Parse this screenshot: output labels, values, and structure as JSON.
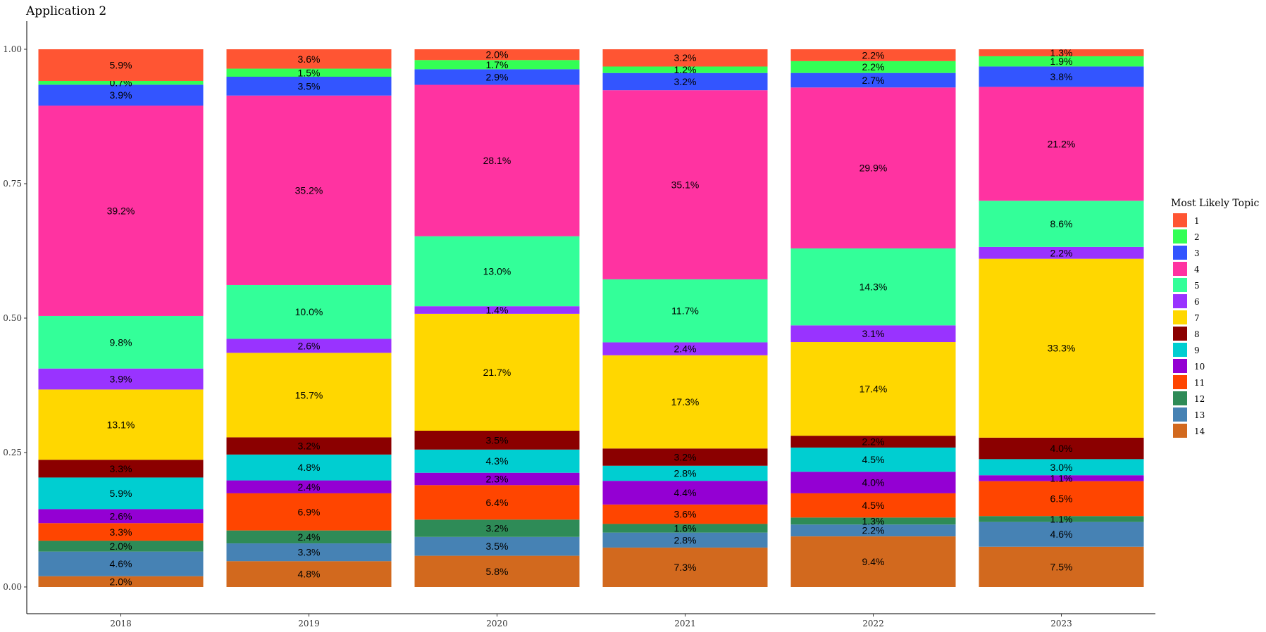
{
  "chart_data": {
    "type": "bar",
    "stacked": true,
    "title": "Application 2",
    "xlabel": "",
    "ylabel": "",
    "ylim": [
      0,
      1
    ],
    "yticks": [
      "0.00",
      "0.25",
      "0.50",
      "0.75",
      "1.00"
    ],
    "categories": [
      "2018",
      "2019",
      "2020",
      "2021",
      "2022",
      "2023"
    ],
    "legend": {
      "title": "Most Likely Topic",
      "position": "right"
    },
    "series": [
      {
        "name": "1",
        "color": "#FF5533",
        "values": [
          0.059,
          0.036,
          0.02,
          0.032,
          0.022,
          0.013
        ],
        "labels": [
          "5.9%",
          "3.6%",
          "2.0%",
          "3.2%",
          "2.2%",
          "1.3%"
        ]
      },
      {
        "name": "2",
        "color": "#33FF55",
        "values": [
          0.007,
          0.015,
          0.017,
          0.012,
          0.022,
          0.019
        ],
        "labels": [
          "0.7%",
          "1.5%",
          "1.7%",
          "1.2%",
          "2.2%",
          "1.9%"
        ]
      },
      {
        "name": "3",
        "color": "#3355FF",
        "values": [
          0.039,
          0.035,
          0.029,
          0.032,
          0.027,
          0.038
        ],
        "labels": [
          "3.9%",
          "3.5%",
          "2.9%",
          "3.2%",
          "2.7%",
          "3.8%"
        ]
      },
      {
        "name": "4",
        "color": "#FF33A1",
        "values": [
          0.392,
          0.352,
          0.281,
          0.351,
          0.299,
          0.212
        ],
        "labels": [
          "39.2%",
          "35.2%",
          "28.1%",
          "35.1%",
          "29.9%",
          "21.2%"
        ]
      },
      {
        "name": "5",
        "color": "#33FF99",
        "values": [
          0.098,
          0.1,
          0.13,
          0.117,
          0.143,
          0.086
        ],
        "labels": [
          "9.8%",
          "10.0%",
          "13.0%",
          "11.7%",
          "14.3%",
          "8.6%"
        ]
      },
      {
        "name": "6",
        "color": "#9933FF",
        "values": [
          0.039,
          0.026,
          0.014,
          0.024,
          0.031,
          0.022
        ],
        "labels": [
          "3.9%",
          "2.6%",
          "1.4%",
          "2.4%",
          "3.1%",
          "2.2%"
        ]
      },
      {
        "name": "7",
        "color": "#FFD700",
        "values": [
          0.131,
          0.157,
          0.217,
          0.173,
          0.174,
          0.333
        ],
        "labels": [
          "13.1%",
          "15.7%",
          "21.7%",
          "17.3%",
          "17.4%",
          "33.3%"
        ]
      },
      {
        "name": "8",
        "color": "#8B0000",
        "values": [
          0.033,
          0.032,
          0.035,
          0.032,
          0.022,
          0.04
        ],
        "labels": [
          "3.3%",
          "3.2%",
          "3.5%",
          "3.2%",
          "2.2%",
          "4.0%"
        ]
      },
      {
        "name": "9",
        "color": "#00CED1",
        "values": [
          0.059,
          0.048,
          0.043,
          0.028,
          0.045,
          0.03
        ],
        "labels": [
          "5.9%",
          "4.8%",
          "4.3%",
          "2.8%",
          "4.5%",
          "3.0%"
        ]
      },
      {
        "name": "10",
        "color": "#9400D3",
        "values": [
          0.026,
          0.024,
          0.023,
          0.044,
          0.04,
          0.011
        ],
        "labels": [
          "2.6%",
          "2.4%",
          "2.3%",
          "4.4%",
          "4.0%",
          "1.1%"
        ]
      },
      {
        "name": "11",
        "color": "#FF4500",
        "values": [
          0.033,
          0.069,
          0.064,
          0.036,
          0.045,
          0.065
        ],
        "labels": [
          "3.3%",
          "6.9%",
          "6.4%",
          "3.6%",
          "4.5%",
          "6.5%"
        ]
      },
      {
        "name": "12",
        "color": "#2E8B57",
        "values": [
          0.02,
          0.024,
          0.032,
          0.016,
          0.013,
          0.011
        ],
        "labels": [
          "2.0%",
          "2.4%",
          "3.2%",
          "1.6%",
          "1.3%",
          "1.1%"
        ]
      },
      {
        "name": "13",
        "color": "#4682B4",
        "values": [
          0.046,
          0.033,
          0.035,
          0.028,
          0.022,
          0.046
        ],
        "labels": [
          "4.6%",
          "3.3%",
          "3.5%",
          "2.8%",
          "2.2%",
          "4.6%"
        ]
      },
      {
        "name": "14",
        "color": "#D2691E",
        "values": [
          0.02,
          0.048,
          0.058,
          0.073,
          0.094,
          0.075
        ],
        "labels": [
          "2.0%",
          "4.8%",
          "5.8%",
          "7.3%",
          "9.4%",
          "7.5%"
        ]
      }
    ]
  }
}
